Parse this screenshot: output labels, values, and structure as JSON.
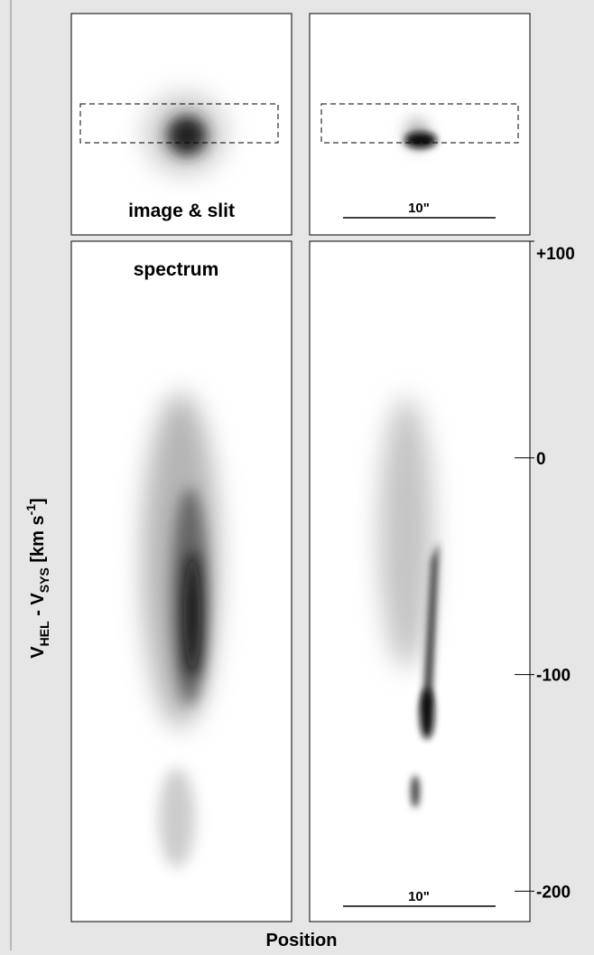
{
  "chart_data": {
    "type": "image-panels",
    "panel_labels": [
      "image & slit",
      "spectrum"
    ],
    "scale_bar_label": "10\"",
    "xlabel": "Position",
    "ylabel_parts": [
      "V",
      "HEL",
      " - V",
      "SYS",
      " [km s",
      "-1",
      "]"
    ],
    "ylim": [
      -214,
      100
    ],
    "yticks": [
      {
        "value": 100,
        "label": "+100"
      },
      0,
      -100,
      -200
    ]
  }
}
